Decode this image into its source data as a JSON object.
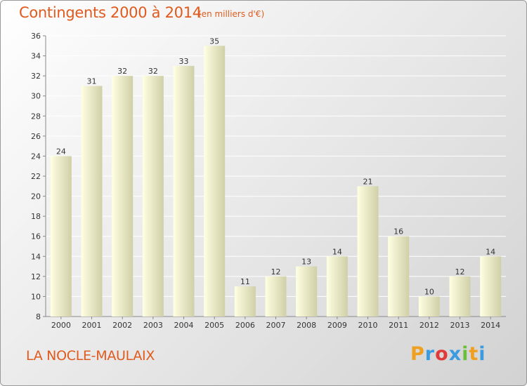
{
  "header": {
    "title": "Contingents 2000 à 2014",
    "unit": "(en milliers d'€)"
  },
  "footer": {
    "commune": "LA NOCLE-MAULAIX",
    "brand_letters": [
      "P",
      "r",
      "o",
      "x",
      "i",
      "t",
      "i"
    ],
    "brand_colors": [
      "#f0a020",
      "#3a9be0",
      "#e03a3a",
      "#3a9be0",
      "#6bbf3a",
      "#f0a020",
      "#3a9be0"
    ]
  },
  "colors": {
    "bar_light": "#ffffe2",
    "bar_dark": "#cfcfa8",
    "grid": "#ffffff",
    "axis_text": "#333333"
  },
  "chart_data": {
    "type": "bar",
    "categories": [
      "2000",
      "2001",
      "2002",
      "2003",
      "2004",
      "2005",
      "2006",
      "2007",
      "2008",
      "2009",
      "2010",
      "2011",
      "2012",
      "2013",
      "2014"
    ],
    "values": [
      24,
      31,
      32,
      32,
      33,
      35,
      11,
      12,
      13,
      14,
      21,
      16,
      10,
      12,
      14
    ],
    "title": "Contingents 2000 à 2014",
    "ylim": [
      8,
      36
    ],
    "yticks": [
      8,
      10,
      12,
      14,
      16,
      18,
      20,
      22,
      24,
      26,
      28,
      30,
      32,
      34,
      36
    ],
    "grid": true
  }
}
